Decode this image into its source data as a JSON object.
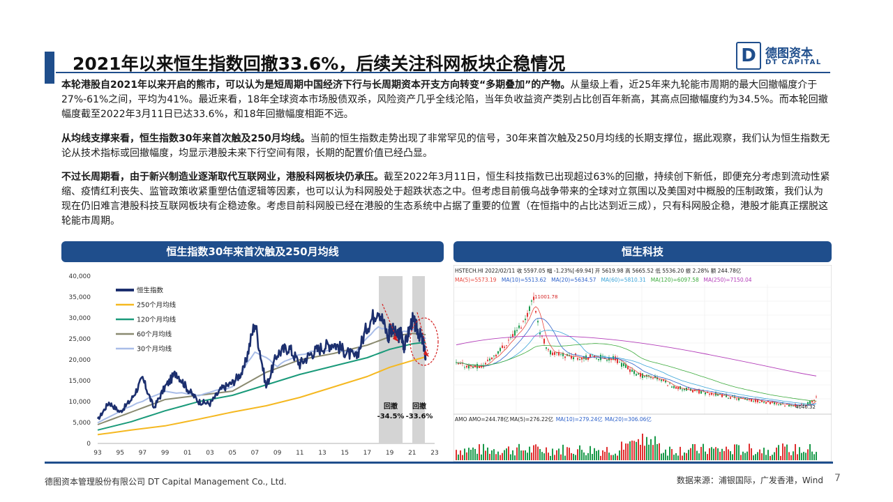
{
  "title": "2021年以来恒生指数回撤33.6%，后续关注科网板块企稳情况",
  "logo": {
    "mark": "D",
    "cn": "德图资本",
    "en": "DT CAPITAL"
  },
  "paragraphs": [
    {
      "bold": "本轮港股自2021年以来开启的熊市，可以认为是短周期中国经济下行与长周期资本开支方向转变“多期叠加”的产物。",
      "text": "从量级上看，近25年来九轮能市周期的最大回撤幅度介于27%-61%之间，平均为41%。最近来看，18年全球资本市场股债双杀，风险资产几乎全线沦陷，当年负收益资产类别占比创百年新高，其高点回撤幅度约为34.5%。而本轮回撤幅度截至2022年3月11日已达33.6%，和18年回撤幅度相距不远。"
    },
    {
      "bold": "从均线支撑来看，恒生指数30年来首次触及250月均线。",
      "text": "当前的恒生指数走势出现了非常罕见的信号，30年来首次触及250月均线的长期支撑位，据此观察，我们认为恒生指数无论从技术指标或回撤幅度，均显示港股未来下行空间有限，长期的配置价值已经凸显。"
    },
    {
      "bold": "不过长周期看，由于新兴制造业逐渐取代互联网业，港股科网板块仍承压。",
      "text": "截至2022年3月11日，恒生科技指数已出现超过63%的回撤，持续创下新低，即便充分考虑到流动性紧缩、疫情红利丧失、监管政策收紧重塑估值逻辑等因素，也可以认为科网股处于超跌状态之中。但考虑目前俄乌战争带来的全球对立氛围以及美国对中概股的压制政策，我们认为现在仍旧难言港股科技互联网板块有企稳迹象。考虑目前科网股已经在港股的生态系统中占据了重要的位置（在恒指中的占比达到近三成），只有科网股企稳，港股才能真正摆脱这轮能市周期。"
    }
  ],
  "left_panel": {
    "title": "恒生指数30年来首次触及250月均线",
    "annotations": [
      {
        "label": "回撤",
        "value": "-34.5%"
      },
      {
        "label": "回撤",
        "value": "-33.6%"
      }
    ]
  },
  "right_panel": {
    "title": "恒生科技",
    "header_line1": "HSTECH.HI 2022/02/11  收 5597.05  幅 -1.23%[-69.94]  开 5619.98  高 5665.52  低 5536.20  振 2.28%  额 244.78亿",
    "ma_line": [
      {
        "text": "MA(5)=5573.19",
        "color": "#e8453c"
      },
      {
        "text": "MA(10)=5513.62",
        "color": "#2a5fc9"
      },
      {
        "text": "MA(20)=5634.57",
        "color": "#2a5fc9"
      },
      {
        "text": "MA(60)=5810.31",
        "color": "#39a3d8"
      },
      {
        "text": "MA(120)=6097.58",
        "color": "#3aaa3a"
      },
      {
        "text": "MA(250)=7150.04",
        "color": "#b23ab8"
      }
    ],
    "high_label": "11001.78",
    "low_label": "4040.32",
    "amo_line": [
      {
        "text": "AMO  AMO=244.78亿",
        "color": "#222222"
      },
      {
        "text": "MA(5)=276.22亿",
        "color": "#222222"
      },
      {
        "text": "MA(10)=279.24亿",
        "color": "#2a5fc9"
      },
      {
        "text": "MA(20)=306.06亿",
        "color": "#2a5fc9"
      }
    ]
  },
  "chart_data": [
    {
      "type": "line",
      "title": "恒生指数30年来首次触及250月均线",
      "x_ticks": [
        "93",
        "95",
        "97",
        "99",
        "01",
        "03",
        "05",
        "07",
        "09",
        "11",
        "13",
        "15",
        "17",
        "19",
        "21",
        "23"
      ],
      "ylim": [
        0,
        40000
      ],
      "y_ticks": [
        "0",
        "5,000",
        "10,000",
        "15,000",
        "20,000",
        "25,000",
        "30,000",
        "35,000",
        "40,000"
      ],
      "legend_position": "top-left",
      "series": [
        {
          "name": "恒生指数",
          "color": "#1c2f6e",
          "points": [
            [
              1993,
              5600
            ],
            [
              1994,
              9800
            ],
            [
              1995,
              7500
            ],
            [
              1996,
              10500
            ],
            [
              1997,
              15500
            ],
            [
              1998,
              8500
            ],
            [
              1999,
              13500
            ],
            [
              2000,
              17000
            ],
            [
              2001,
              13000
            ],
            [
              2002,
              10000
            ],
            [
              2003,
              9500
            ],
            [
              2004,
              13000
            ],
            [
              2005,
              14500
            ],
            [
              2006,
              17500
            ],
            [
              2007,
              29000
            ],
            [
              2008,
              13500
            ],
            [
              2009,
              21500
            ],
            [
              2010,
              23000
            ],
            [
              2011,
              19000
            ],
            [
              2012,
              21500
            ],
            [
              2013,
              23000
            ],
            [
              2014,
              24000
            ],
            [
              2015,
              22000
            ],
            [
              2016,
              20500
            ],
            [
              2017,
              28000
            ],
            [
              2018,
              32500
            ],
            [
              2018.9,
              25000
            ],
            [
              2019,
              28000
            ],
            [
              2019.7,
              25500
            ],
            [
              2020,
              26500
            ],
            [
              2020.3,
              23000
            ],
            [
              2021,
              29500
            ],
            [
              2021.5,
              27000
            ],
            [
              2022,
              24000
            ],
            [
              2022.2,
              20500
            ]
          ]
        },
        {
          "name": "250个月均线",
          "color": "#f5b820",
          "points": [
            [
              1993,
              2100
            ],
            [
              1996,
              3200
            ],
            [
              1999,
              4200
            ],
            [
              2002,
              5800
            ],
            [
              2005,
              7500
            ],
            [
              2008,
              9000
            ],
            [
              2011,
              11000
            ],
            [
              2014,
              13500
            ],
            [
              2017,
              16000
            ],
            [
              2019,
              18200
            ],
            [
              2021,
              19800
            ],
            [
              2022.2,
              20700
            ]
          ]
        },
        {
          "name": "120个月均线",
          "color": "#1a9a7a",
          "points": [
            [
              1993,
              3200
            ],
            [
              1996,
              5200
            ],
            [
              1999,
              7800
            ],
            [
              2002,
              10000
            ],
            [
              2005,
              11500
            ],
            [
              2008,
              14000
            ],
            [
              2011,
              16500
            ],
            [
              2014,
              18500
            ],
            [
              2017,
              20500
            ],
            [
              2019,
              22500
            ],
            [
              2021,
              23800
            ],
            [
              2022.2,
              24200
            ]
          ]
        },
        {
          "name": "60个月均线",
          "color": "#8a8a70",
          "points": [
            [
              1993,
              4500
            ],
            [
              1996,
              7500
            ],
            [
              1999,
              10500
            ],
            [
              2002,
              11500
            ],
            [
              2005,
              12500
            ],
            [
              2008,
              17000
            ],
            [
              2011,
              20000
            ],
            [
              2014,
              21500
            ],
            [
              2017,
              23500
            ],
            [
              2019,
              25500
            ],
            [
              2021,
              26300
            ],
            [
              2022.2,
              26000
            ]
          ]
        },
        {
          "name": "30个月均线",
          "color": "#a9bde8",
          "points": [
            [
              1993,
              5000
            ],
            [
              1996,
              9000
            ],
            [
              1999,
              12500
            ],
            [
              2002,
              11500
            ],
            [
              2005,
              13500
            ],
            [
              2007,
              22000
            ],
            [
              2009,
              18500
            ],
            [
              2011,
              21500
            ],
            [
              2014,
              22500
            ],
            [
              2016,
              22000
            ],
            [
              2018,
              28000
            ],
            [
              2020,
              26500
            ],
            [
              2021,
              27500
            ],
            [
              2022.2,
              25000
            ]
          ]
        }
      ]
    },
    {
      "type": "candlestick",
      "title": "恒生科技",
      "high": 11001.78,
      "low": 4040.32
    }
  ],
  "footer": {
    "company": "德图资本管理股份有限公司  DT Capital Management Co., Ltd.",
    "source": "数据来源：浦银国际，广发香港，Wind",
    "page": "7"
  }
}
